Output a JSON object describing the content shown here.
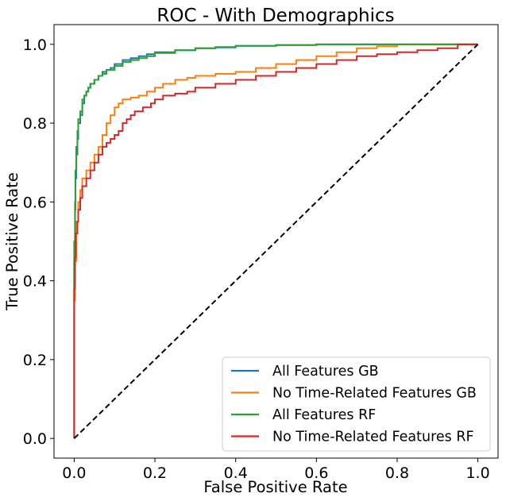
{
  "chart_data": {
    "type": "line",
    "title": "ROC - With Demographics",
    "xlabel": "False Positive Rate",
    "ylabel": "True Positive Rate",
    "xlim": [
      -0.05,
      1.05
    ],
    "ylim": [
      -0.05,
      1.05
    ],
    "xticks": [
      0.0,
      0.2,
      0.4,
      0.6,
      0.8,
      1.0
    ],
    "xtick_labels": [
      "0.0",
      "0.2",
      "0.4",
      "0.6",
      "0.8",
      "1.0"
    ],
    "yticks": [
      0.0,
      0.2,
      0.4,
      0.6,
      0.8,
      1.0
    ],
    "ytick_labels": [
      "0.0",
      "0.2",
      "0.4",
      "0.6",
      "0.8",
      "1.0"
    ],
    "grid": false,
    "legend_position": "lower-right",
    "series": [
      {
        "name": "All Features GB",
        "color": "#1f77b4",
        "style": "step",
        "points": [
          [
            0,
            0
          ],
          [
            0,
            0.25
          ],
          [
            0.002,
            0.45
          ],
          [
            0.003,
            0.58
          ],
          [
            0.005,
            0.66
          ],
          [
            0.008,
            0.72
          ],
          [
            0.01,
            0.76
          ],
          [
            0.015,
            0.8
          ],
          [
            0.02,
            0.82
          ],
          [
            0.025,
            0.85
          ],
          [
            0.03,
            0.87
          ],
          [
            0.035,
            0.88
          ],
          [
            0.04,
            0.89
          ],
          [
            0.05,
            0.9
          ],
          [
            0.06,
            0.91
          ],
          [
            0.07,
            0.92
          ],
          [
            0.08,
            0.93
          ],
          [
            0.09,
            0.935
          ],
          [
            0.1,
            0.94
          ],
          [
            0.12,
            0.95
          ],
          [
            0.14,
            0.96
          ],
          [
            0.16,
            0.965
          ],
          [
            0.18,
            0.97
          ],
          [
            0.2,
            0.975
          ],
          [
            0.25,
            0.98
          ],
          [
            0.3,
            0.985
          ],
          [
            0.35,
            0.99
          ],
          [
            0.4,
            0.992
          ],
          [
            0.5,
            0.996
          ],
          [
            0.6,
            0.998
          ],
          [
            0.7,
            1.0
          ],
          [
            1.0,
            1.0
          ]
        ]
      },
      {
        "name": "No Time-Related Features GB",
        "color": "#ff7f0e",
        "style": "step",
        "points": [
          [
            0,
            0
          ],
          [
            0,
            0.2
          ],
          [
            0.002,
            0.35
          ],
          [
            0.005,
            0.45
          ],
          [
            0.01,
            0.55
          ],
          [
            0.015,
            0.6
          ],
          [
            0.02,
            0.63
          ],
          [
            0.03,
            0.66
          ],
          [
            0.04,
            0.68
          ],
          [
            0.05,
            0.7
          ],
          [
            0.06,
            0.72
          ],
          [
            0.07,
            0.74
          ],
          [
            0.08,
            0.77
          ],
          [
            0.09,
            0.8
          ],
          [
            0.1,
            0.82
          ],
          [
            0.11,
            0.84
          ],
          [
            0.12,
            0.85
          ],
          [
            0.14,
            0.86
          ],
          [
            0.16,
            0.865
          ],
          [
            0.18,
            0.87
          ],
          [
            0.2,
            0.88
          ],
          [
            0.22,
            0.89
          ],
          [
            0.25,
            0.9
          ],
          [
            0.28,
            0.91
          ],
          [
            0.3,
            0.915
          ],
          [
            0.35,
            0.92
          ],
          [
            0.4,
            0.925
          ],
          [
            0.45,
            0.93
          ],
          [
            0.5,
            0.94
          ],
          [
            0.55,
            0.95
          ],
          [
            0.6,
            0.96
          ],
          [
            0.65,
            0.97
          ],
          [
            0.7,
            0.98
          ],
          [
            0.75,
            0.99
          ],
          [
            0.8,
            0.995
          ],
          [
            0.9,
            1.0
          ],
          [
            1.0,
            1.0
          ]
        ]
      },
      {
        "name": "All Features RF",
        "color": "#2ca02c",
        "style": "step",
        "points": [
          [
            0,
            0
          ],
          [
            0,
            0.3
          ],
          [
            0.002,
            0.5
          ],
          [
            0.003,
            0.6
          ],
          [
            0.005,
            0.68
          ],
          [
            0.008,
            0.74
          ],
          [
            0.01,
            0.78
          ],
          [
            0.015,
            0.81
          ],
          [
            0.02,
            0.83
          ],
          [
            0.025,
            0.86
          ],
          [
            0.03,
            0.87
          ],
          [
            0.035,
            0.88
          ],
          [
            0.04,
            0.89
          ],
          [
            0.05,
            0.9
          ],
          [
            0.06,
            0.91
          ],
          [
            0.07,
            0.92
          ],
          [
            0.08,
            0.925
          ],
          [
            0.1,
            0.935
          ],
          [
            0.12,
            0.945
          ],
          [
            0.14,
            0.955
          ],
          [
            0.16,
            0.96
          ],
          [
            0.18,
            0.965
          ],
          [
            0.2,
            0.97
          ],
          [
            0.25,
            0.978
          ],
          [
            0.3,
            0.985
          ],
          [
            0.35,
            0.99
          ],
          [
            0.4,
            0.993
          ],
          [
            0.5,
            0.996
          ],
          [
            0.6,
            0.998
          ],
          [
            0.7,
            1.0
          ],
          [
            1.0,
            1.0
          ]
        ]
      },
      {
        "name": "No Time-Related Features RF",
        "color": "#d62728",
        "style": "step",
        "points": [
          [
            0,
            0
          ],
          [
            0,
            0.23
          ],
          [
            0.002,
            0.38
          ],
          [
            0.004,
            0.46
          ],
          [
            0.008,
            0.52
          ],
          [
            0.01,
            0.55
          ],
          [
            0.015,
            0.58
          ],
          [
            0.02,
            0.61
          ],
          [
            0.03,
            0.64
          ],
          [
            0.04,
            0.66
          ],
          [
            0.05,
            0.68
          ],
          [
            0.06,
            0.7
          ],
          [
            0.07,
            0.72
          ],
          [
            0.08,
            0.74
          ],
          [
            0.09,
            0.75
          ],
          [
            0.1,
            0.76
          ],
          [
            0.11,
            0.77
          ],
          [
            0.12,
            0.78
          ],
          [
            0.13,
            0.8
          ],
          [
            0.14,
            0.81
          ],
          [
            0.15,
            0.82
          ],
          [
            0.17,
            0.83
          ],
          [
            0.19,
            0.84
          ],
          [
            0.2,
            0.85
          ],
          [
            0.22,
            0.86
          ],
          [
            0.25,
            0.87
          ],
          [
            0.28,
            0.875
          ],
          [
            0.3,
            0.88
          ],
          [
            0.35,
            0.89
          ],
          [
            0.4,
            0.9
          ],
          [
            0.45,
            0.91
          ],
          [
            0.5,
            0.92
          ],
          [
            0.55,
            0.93
          ],
          [
            0.6,
            0.94
          ],
          [
            0.65,
            0.95
          ],
          [
            0.7,
            0.96
          ],
          [
            0.75,
            0.97
          ],
          [
            0.8,
            0.975
          ],
          [
            0.85,
            0.98
          ],
          [
            0.9,
            0.985
          ],
          [
            0.95,
            0.99
          ],
          [
            1.0,
            1.0
          ]
        ]
      },
      {
        "name": "",
        "color": "#000000",
        "style": "dashed",
        "points": [
          [
            0,
            0
          ],
          [
            1,
            1
          ]
        ]
      }
    ]
  }
}
